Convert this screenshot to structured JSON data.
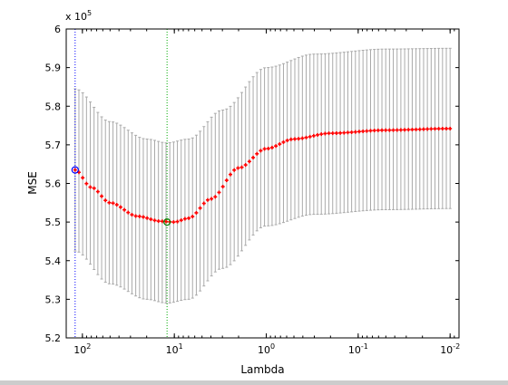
{
  "chart_data": {
    "type": "line",
    "xlabel": "Lambda",
    "ylabel": "MSE",
    "y_multiplier_label": "x 10",
    "y_multiplier_exponent": "5",
    "x_scale": "log",
    "x_direction": "reversed",
    "xlim": [
      150,
      0.008
    ],
    "ylim": [
      5.2,
      6.0
    ],
    "x_ticks": [
      {
        "value": 100,
        "base": "10",
        "exp": "2"
      },
      {
        "value": 10,
        "base": "10",
        "exp": "1"
      },
      {
        "value": 1,
        "base": "10",
        "exp": "0"
      },
      {
        "value": 0.1,
        "base": "10",
        "exp": "-1"
      },
      {
        "value": 0.01,
        "base": "10",
        "exp": "-2"
      }
    ],
    "y_ticks": [
      "5.2",
      "5.3",
      "5.4",
      "5.5",
      "5.6",
      "5.7",
      "5.8",
      "5.9",
      "6"
    ],
    "grid": false,
    "n_lambda": 100,
    "lambda_max": 120,
    "lambda_min": 0.01,
    "mse_curve_anchors": [
      {
        "lambda": 120,
        "mse": 5.635
      },
      {
        "lambda": 80,
        "mse": 5.59
      },
      {
        "lambda": 50,
        "mse": 5.55
      },
      {
        "lambda": 25,
        "mse": 5.515
      },
      {
        "lambda": 14,
        "mse": 5.502
      },
      {
        "lambda": 10,
        "mse": 5.5
      },
      {
        "lambda": 7,
        "mse": 5.51
      },
      {
        "lambda": 4,
        "mse": 5.56
      },
      {
        "lambda": 2,
        "mse": 5.64
      },
      {
        "lambda": 1,
        "mse": 5.69
      },
      {
        "lambda": 0.5,
        "mse": 5.715
      },
      {
        "lambda": 0.2,
        "mse": 5.73
      },
      {
        "lambda": 0.05,
        "mse": 5.738
      },
      {
        "lambda": 0.01,
        "mse": 5.742
      }
    ],
    "error_upper_anchors": [
      {
        "lambda": 120,
        "mse": 5.845
      },
      {
        "lambda": 50,
        "mse": 5.76
      },
      {
        "lambda": 20,
        "mse": 5.715
      },
      {
        "lambda": 12,
        "mse": 5.705
      },
      {
        "lambda": 7,
        "mse": 5.715
      },
      {
        "lambda": 3,
        "mse": 5.79
      },
      {
        "lambda": 1,
        "mse": 5.9
      },
      {
        "lambda": 0.3,
        "mse": 5.935
      },
      {
        "lambda": 0.05,
        "mse": 5.948
      },
      {
        "lambda": 0.01,
        "mse": 5.95
      }
    ],
    "error_lower_anchors": [
      {
        "lambda": 120,
        "mse": 5.425
      },
      {
        "lambda": 50,
        "mse": 5.34
      },
      {
        "lambda": 20,
        "mse": 5.3
      },
      {
        "lambda": 12,
        "mse": 5.29
      },
      {
        "lambda": 7,
        "mse": 5.3
      },
      {
        "lambda": 3,
        "mse": 5.38
      },
      {
        "lambda": 1,
        "mse": 5.49
      },
      {
        "lambda": 0.3,
        "mse": 5.52
      },
      {
        "lambda": 0.05,
        "mse": 5.532
      },
      {
        "lambda": 0.01,
        "mse": 5.535
      }
    ],
    "lambda_min_mse": {
      "lambda": 12,
      "mse": 5.5
    },
    "lambda_1se": {
      "lambda": 120,
      "mse": 5.635
    },
    "colors": {
      "curve": "#ff0000",
      "error_bars": "#aaaaaa",
      "min_mse_line": "#00aa00",
      "one_se_line": "#0000ff",
      "min_marker": "#008000",
      "one_se_marker": "#0000ff"
    }
  }
}
